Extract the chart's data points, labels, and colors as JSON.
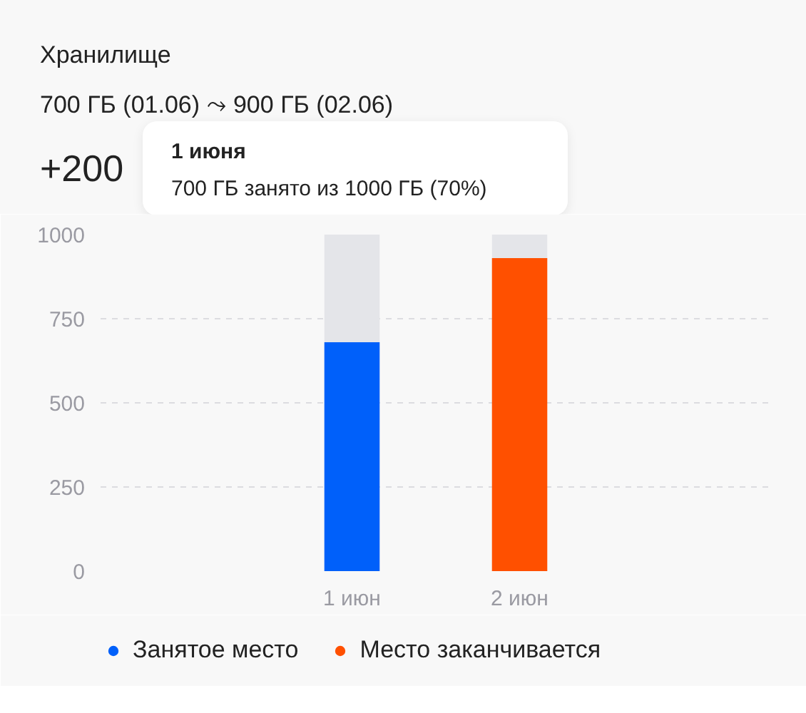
{
  "chart_data": {
    "type": "bar",
    "title": "Хранилище",
    "subtitle": "700 ГБ (01.06) ⤳ 900 ГБ (02.06)",
    "annotations": [
      "+200",
      "1 июня",
      "700 ГБ занято из 1000 ГБ (70%)"
    ],
    "categories": [
      null,
      "1 июн",
      "2 июн",
      null
    ],
    "stacked": true,
    "series": [
      {
        "name": "Занятое место",
        "color": "#0060fa",
        "values": [
          null,
          680,
          null,
          null
        ]
      },
      {
        "name": "Место заканчивается",
        "color": "#ff5000",
        "values": [
          null,
          null,
          930,
          null
        ]
      },
      {
        "color": "#e4e5e9",
        "values": [
          null,
          320,
          70,
          null
        ]
      }
    ],
    "ylim": [
      0,
      1000
    ],
    "yticks": [
      0,
      250,
      500,
      750,
      1000
    ],
    "grid": "y",
    "legend": "bottom"
  }
}
